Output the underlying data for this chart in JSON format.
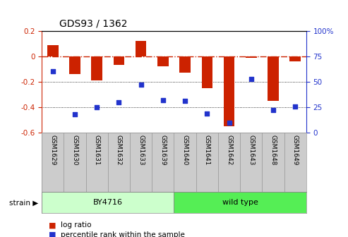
{
  "title": "GDS93 / 1362",
  "samples": [
    "GSM1629",
    "GSM1630",
    "GSM1631",
    "GSM1632",
    "GSM1633",
    "GSM1639",
    "GSM1640",
    "GSM1641",
    "GSM1642",
    "GSM1643",
    "GSM1648",
    "GSM1649"
  ],
  "log_ratio": [
    0.09,
    -0.14,
    -0.19,
    -0.07,
    0.12,
    -0.08,
    -0.13,
    -0.25,
    -0.55,
    -0.01,
    -0.35,
    -0.04
  ],
  "percentile": [
    60,
    18,
    25,
    30,
    47,
    32,
    31,
    19,
    10,
    53,
    22,
    26
  ],
  "ylim_left": [
    -0.6,
    0.2
  ],
  "ylim_right": [
    0,
    100
  ],
  "bar_color": "#cc2200",
  "dot_color": "#2233cc",
  "zero_line_color": "#cc2200",
  "by4716_label": "BY4716",
  "wildtype_label": "wild type",
  "by4716_count": 6,
  "wildtype_count": 6,
  "legend_log_ratio": "log ratio",
  "legend_percentile": "percentile rank within the sample",
  "bg_color_by4716": "#ccffcc",
  "bg_color_wildtype": "#55ee55",
  "label_box_color": "#cccccc",
  "yticks_left": [
    0.2,
    0.0,
    -0.2,
    -0.4,
    -0.6
  ],
  "ytick_left_labels": [
    "0.2",
    "0",
    "-0.2",
    "-0.4",
    "-0.6"
  ],
  "yticks_right": [
    0,
    25,
    50,
    75,
    100
  ],
  "ytick_right_labels": [
    "0",
    "25",
    "50",
    "75",
    "100%"
  ]
}
